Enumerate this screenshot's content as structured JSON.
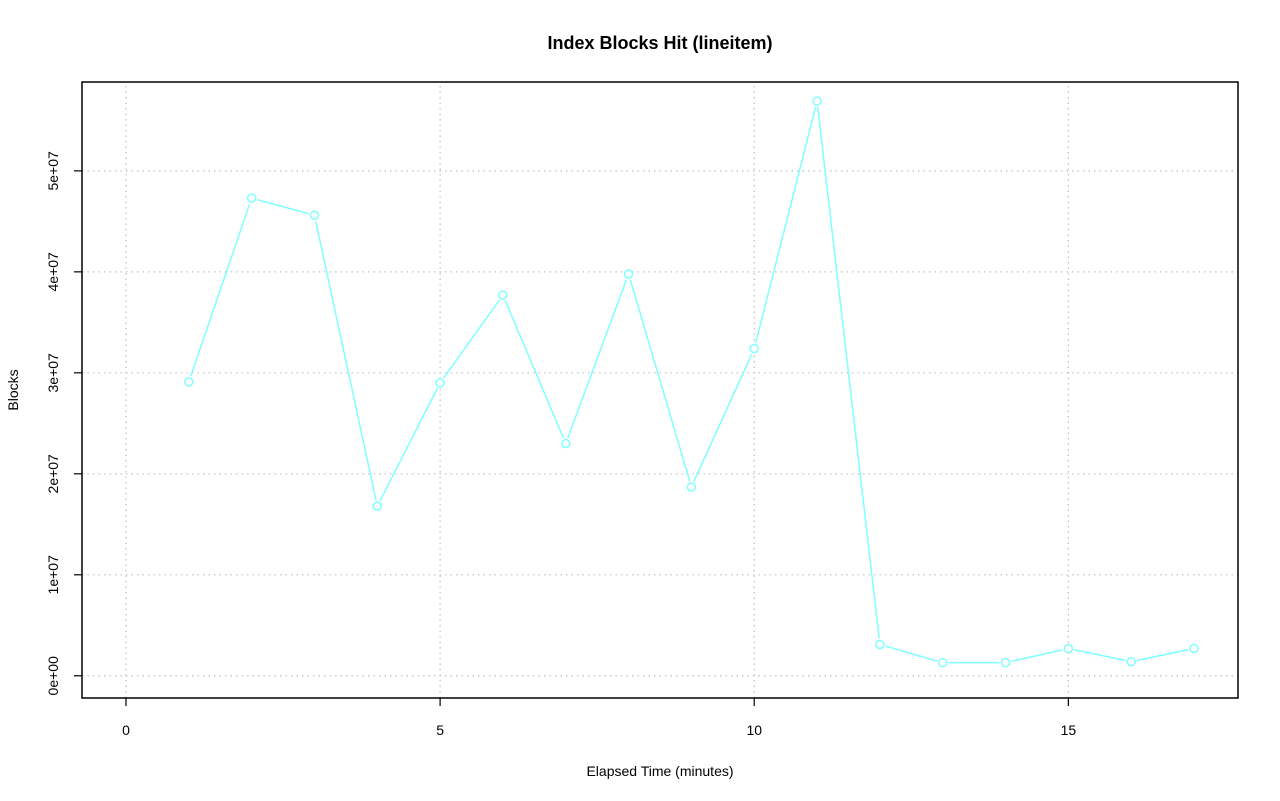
{
  "chart_data": {
    "type": "line",
    "title": "Index Blocks Hit (lineitem)",
    "xlabel": "Elapsed Time (minutes)",
    "ylabel": "Blocks",
    "xlim": [
      -0.7,
      17.7
    ],
    "ylim": [
      -2200000,
      58800000
    ],
    "x_ticks": [
      0,
      5,
      10,
      15
    ],
    "x_tick_labels": [
      "0",
      "5",
      "10",
      "15"
    ],
    "y_ticks": [
      0,
      10000000,
      20000000,
      30000000,
      40000000,
      50000000
    ],
    "y_tick_labels": [
      "0e+00",
      "1e+07",
      "2e+07",
      "3e+07",
      "4e+07",
      "5e+07"
    ],
    "grid": true,
    "series_color": "#7fffff",
    "series": [
      {
        "x": [
          1,
          2,
          3,
          4,
          5,
          6,
          7,
          8,
          9,
          10,
          11,
          12,
          13,
          14,
          15,
          16,
          17
        ],
        "values": [
          29100000,
          47300000,
          45600000,
          16800000,
          29000000,
          37700000,
          23000000,
          39800000,
          18700000,
          32400000,
          56900000,
          3100000,
          1300000,
          1300000,
          2700000,
          1400000,
          2700000
        ]
      }
    ]
  }
}
